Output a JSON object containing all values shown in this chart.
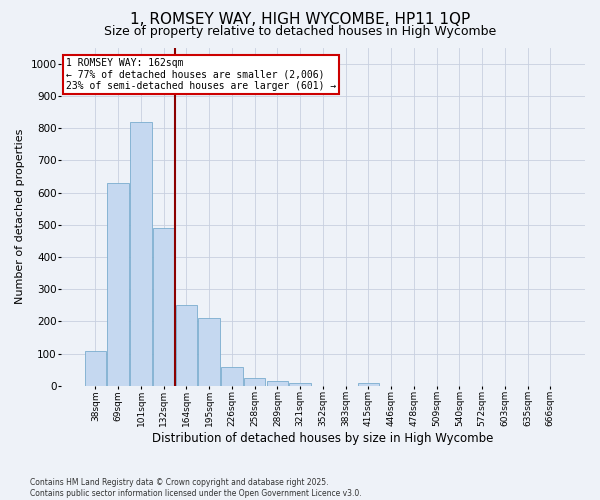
{
  "title1": "1, ROMSEY WAY, HIGH WYCOMBE, HP11 1QP",
  "title2": "Size of property relative to detached houses in High Wycombe",
  "xlabel": "Distribution of detached houses by size in High Wycombe",
  "ylabel": "Number of detached properties",
  "categories": [
    "38sqm",
    "69sqm",
    "101sqm",
    "132sqm",
    "164sqm",
    "195sqm",
    "226sqm",
    "258sqm",
    "289sqm",
    "321sqm",
    "352sqm",
    "383sqm",
    "415sqm",
    "446sqm",
    "478sqm",
    "509sqm",
    "540sqm",
    "572sqm",
    "603sqm",
    "635sqm",
    "666sqm"
  ],
  "values": [
    108,
    630,
    820,
    490,
    250,
    210,
    60,
    25,
    15,
    10,
    0,
    0,
    10,
    0,
    0,
    0,
    0,
    0,
    0,
    0,
    0
  ],
  "bar_color": "#c5d8f0",
  "bar_edge_color": "#7aadce",
  "vline_color": "#8b0000",
  "annotation_lines": [
    "1 ROMSEY WAY: 162sqm",
    "← 77% of detached houses are smaller (2,006)",
    "23% of semi-detached houses are larger (601) →"
  ],
  "annotation_box_color": "#ffffff",
  "annotation_box_edge_color": "#cc0000",
  "ylim": [
    0,
    1050
  ],
  "yticks": [
    0,
    100,
    200,
    300,
    400,
    500,
    600,
    700,
    800,
    900,
    1000
  ],
  "background_color": "#eef2f8",
  "footer": "Contains HM Land Registry data © Crown copyright and database right 2025.\nContains public sector information licensed under the Open Government Licence v3.0.",
  "title1_fontsize": 11,
  "title2_fontsize": 9,
  "xlabel_fontsize": 8.5,
  "ylabel_fontsize": 8
}
